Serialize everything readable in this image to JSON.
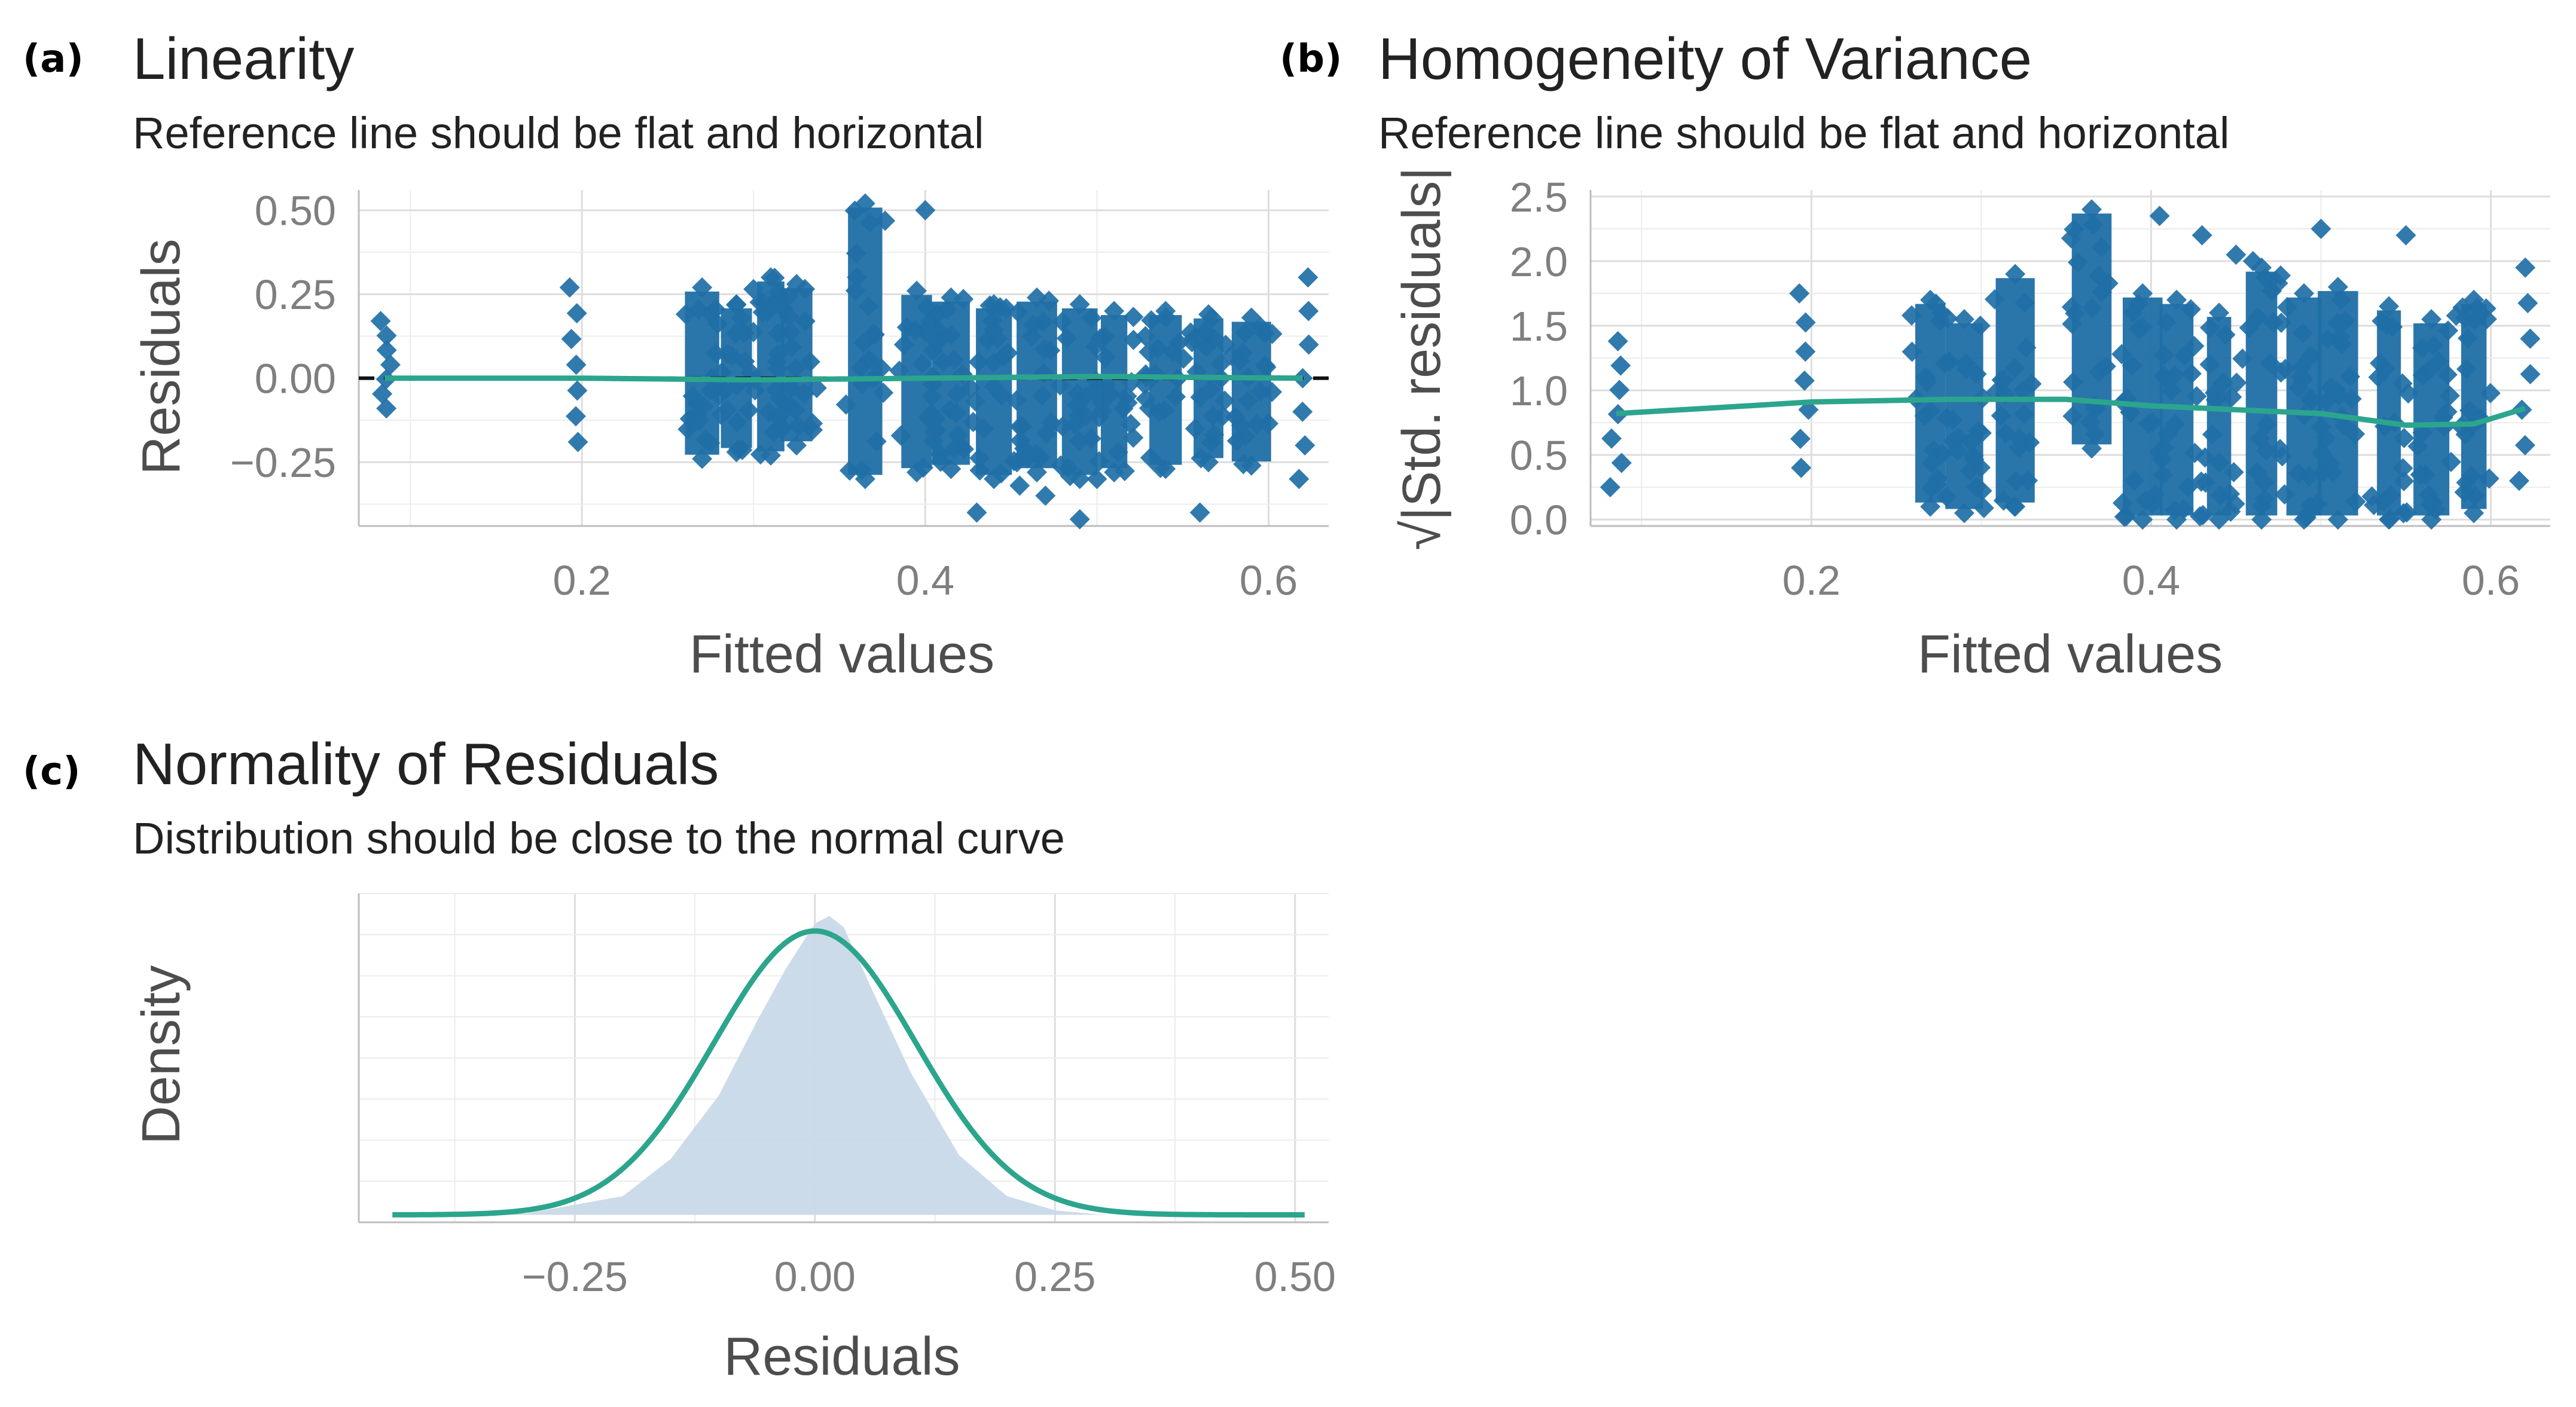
{
  "chart_data": [
    {
      "panel_label": "(a)",
      "type": "scatter",
      "title": "Linearity",
      "subtitle": "Reference line should be flat and horizontal",
      "xlabel": "Fitted values",
      "ylabel": "Residuals",
      "xlim": [
        0.07,
        0.635
      ],
      "ylim": [
        -0.44,
        0.56
      ],
      "xticks": [
        0.2,
        0.4,
        0.6
      ],
      "xtick_labels": [
        "0.2",
        "0.4",
        "0.6"
      ],
      "yticks": [
        -0.25,
        0.0,
        0.25,
        0.5
      ],
      "ytick_labels": [
        "−0.25",
        "0.00",
        "0.25",
        "0.50"
      ],
      "reference_line": 0.0,
      "point_color": "#1f6fa6",
      "smooth_color": "#2ca58d",
      "columns": [
        {
          "x": 0.085,
          "min": -0.09,
          "max": 0.17,
          "dense": false
        },
        {
          "x": 0.195,
          "min": -0.19,
          "max": 0.27,
          "dense": false
        },
        {
          "x": 0.27,
          "min": -0.24,
          "max": 0.27,
          "dense": true
        },
        {
          "x": 0.29,
          "min": -0.22,
          "max": 0.22,
          "dense": true
        },
        {
          "x": 0.31,
          "min": -0.23,
          "max": 0.3,
          "dense": true
        },
        {
          "x": 0.325,
          "min": -0.2,
          "max": 0.28,
          "dense": true
        },
        {
          "x": 0.365,
          "min": -0.3,
          "max": 0.52,
          "dense": true
        },
        {
          "x": 0.395,
          "min": -0.28,
          "max": 0.26,
          "dense": true
        },
        {
          "x": 0.415,
          "min": -0.27,
          "max": 0.24,
          "dense": true
        },
        {
          "x": 0.44,
          "min": -0.3,
          "max": 0.22,
          "dense": true
        },
        {
          "x": 0.465,
          "min": -0.28,
          "max": 0.24,
          "dense": true
        },
        {
          "x": 0.49,
          "min": -0.3,
          "max": 0.22,
          "dense": true
        },
        {
          "x": 0.51,
          "min": -0.28,
          "max": 0.2,
          "dense": true
        },
        {
          "x": 0.54,
          "min": -0.27,
          "max": 0.2,
          "dense": true
        },
        {
          "x": 0.565,
          "min": -0.25,
          "max": 0.19,
          "dense": true
        },
        {
          "x": 0.59,
          "min": -0.26,
          "max": 0.18,
          "dense": true
        },
        {
          "x": 0.62,
          "min": -0.3,
          "max": 0.3,
          "dense": false
        }
      ],
      "outliers": [
        [
          0.4,
          0.5
        ],
        [
          0.43,
          -0.4
        ],
        [
          0.455,
          -0.32
        ],
        [
          0.49,
          -0.42
        ],
        [
          0.56,
          -0.4
        ],
        [
          0.5,
          -0.3
        ],
        [
          0.47,
          -0.35
        ]
      ],
      "smooth": [
        [
          0.085,
          0.0
        ],
        [
          0.2,
          0.0
        ],
        [
          0.3,
          -0.005
        ],
        [
          0.4,
          0.0
        ],
        [
          0.5,
          0.005
        ],
        [
          0.62,
          0.0
        ]
      ]
    },
    {
      "panel_label": "(b)",
      "type": "scatter",
      "title": "Homogeneity of Variance",
      "subtitle": "Reference line should be flat and horizontal",
      "xlabel": "Fitted values",
      "ylabel": "√|Std. residuals|",
      "xlim": [
        0.07,
        0.635
      ],
      "ylim": [
        -0.05,
        2.55
      ],
      "xticks": [
        0.2,
        0.4,
        0.6
      ],
      "xtick_labels": [
        "0.2",
        "0.4",
        "0.6"
      ],
      "yticks": [
        0.0,
        0.5,
        1.0,
        1.5,
        2.0,
        2.5
      ],
      "ytick_labels": [
        "0.0",
        "0.5",
        "1.0",
        "1.5",
        "2.0",
        "2.5"
      ],
      "point_color": "#1f6fa6",
      "smooth_color": "#2ca58d",
      "columns": [
        {
          "x": 0.085,
          "min": 0.25,
          "max": 1.38,
          "dense": false
        },
        {
          "x": 0.195,
          "min": 0.4,
          "max": 1.75,
          "dense": false
        },
        {
          "x": 0.27,
          "min": 0.1,
          "max": 1.7,
          "dense": true
        },
        {
          "x": 0.29,
          "min": 0.05,
          "max": 1.55,
          "dense": true
        },
        {
          "x": 0.32,
          "min": 0.1,
          "max": 1.9,
          "dense": true
        },
        {
          "x": 0.365,
          "min": 0.55,
          "max": 2.4,
          "dense": true
        },
        {
          "x": 0.395,
          "min": 0.0,
          "max": 1.75,
          "dense": true
        },
        {
          "x": 0.415,
          "min": 0.0,
          "max": 1.7,
          "dense": true
        },
        {
          "x": 0.44,
          "min": 0.0,
          "max": 1.6,
          "dense": true
        },
        {
          "x": 0.465,
          "min": 0.0,
          "max": 1.95,
          "dense": true
        },
        {
          "x": 0.49,
          "min": 0.0,
          "max": 1.75,
          "dense": true
        },
        {
          "x": 0.51,
          "min": 0.0,
          "max": 1.8,
          "dense": true
        },
        {
          "x": 0.54,
          "min": 0.0,
          "max": 1.65,
          "dense": true
        },
        {
          "x": 0.565,
          "min": 0.0,
          "max": 1.55,
          "dense": true
        },
        {
          "x": 0.59,
          "min": 0.05,
          "max": 1.7,
          "dense": true
        },
        {
          "x": 0.62,
          "min": 0.3,
          "max": 1.95,
          "dense": false
        }
      ],
      "outliers": [
        [
          0.405,
          2.35
        ],
        [
          0.43,
          2.2
        ],
        [
          0.45,
          2.05
        ],
        [
          0.5,
          2.25
        ],
        [
          0.55,
          2.2
        ],
        [
          0.46,
          2.0
        ]
      ],
      "smooth": [
        [
          0.085,
          0.82
        ],
        [
          0.15,
          0.87
        ],
        [
          0.2,
          0.91
        ],
        [
          0.28,
          0.93
        ],
        [
          0.35,
          0.93
        ],
        [
          0.4,
          0.88
        ],
        [
          0.45,
          0.85
        ],
        [
          0.5,
          0.82
        ],
        [
          0.55,
          0.73
        ],
        [
          0.59,
          0.74
        ],
        [
          0.62,
          0.86
        ]
      ]
    },
    {
      "panel_label": "(c)",
      "type": "area",
      "title": "Normality of Residuals",
      "subtitle": "Distribution should be close to the normal curve",
      "xlabel": "Residuals",
      "ylabel": "Density",
      "xlim": [
        -0.475,
        0.535
      ],
      "ylim": [
        -0.1,
        4.3
      ],
      "xticks": [
        -0.25,
        0.0,
        0.25,
        0.5
      ],
      "xtick_labels": [
        "−0.25",
        "0.00",
        "0.25",
        "0.50"
      ],
      "empirical_density": {
        "x": [
          -0.44,
          -0.3,
          -0.2,
          -0.15,
          -0.1,
          -0.06,
          -0.03,
          0.0,
          0.015,
          0.03,
          0.06,
          0.1,
          0.15,
          0.2,
          0.25,
          0.3,
          0.51
        ],
        "y": [
          0.0,
          0.02,
          0.25,
          0.75,
          1.6,
          2.6,
          3.3,
          3.9,
          4.0,
          3.85,
          3.0,
          1.9,
          0.8,
          0.25,
          0.06,
          0.0,
          0.0
        ]
      },
      "normal_curve": {
        "mean": 0.0,
        "sd": 0.105,
        "peak": 3.8
      },
      "fill_color": "#c9d9e8",
      "curve_color": "#2ca58d"
    }
  ]
}
